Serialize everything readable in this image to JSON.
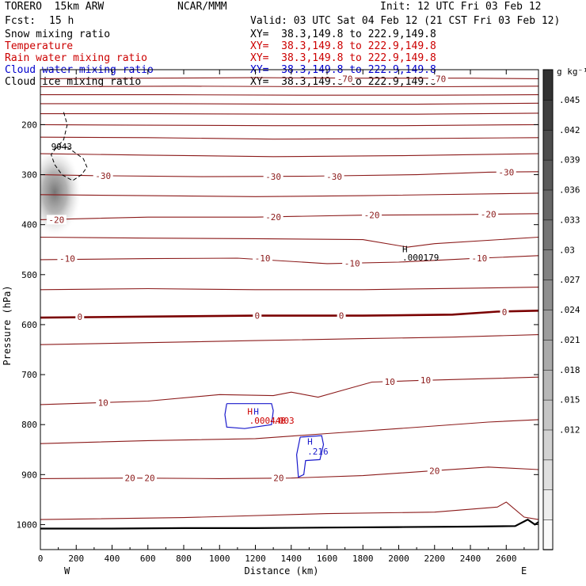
{
  "header": {
    "model": "TORERO  15km ARW",
    "org": "NCAR/MMM",
    "init": "Init: 12 UTC Fri 03 Feb 12",
    "fcst_label": "Fcst:",
    "fcst_value": "15 h",
    "valid": "Valid: 03 UTC Sat 04 Feb 12 (21 CST Fri 03 Feb 12)"
  },
  "legend": [
    {
      "name": "Snow mixing ratio",
      "xy": "XY=  38.3,149.8 to 222.9,149.8",
      "name_color": "#000000",
      "xy_color": "#000000"
    },
    {
      "name": "Temperature",
      "xy": "XY=  38.3,149.8 to 222.9,149.8",
      "name_color": "#cc0000",
      "xy_color": "#cc0000"
    },
    {
      "name": "Rain water mixing ratio",
      "xy": "XY=  38.3,149.8 to 222.9,149.8",
      "name_color": "#cc0000",
      "xy_color": "#cc0000"
    },
    {
      "name": "Cloud water mixing ratio",
      "xy": "XY=  38.3,149.8 to 222.9,149.8",
      "name_color": "#0000cc",
      "xy_color": "#0000cc"
    },
    {
      "name": "Cloud ice mixing ratio",
      "xy": "XY=  38.3,149.8 to 222.9,149.8",
      "name_color": "#000000",
      "xy_color": "#000000"
    }
  ],
  "colors": {
    "temperature": "#8b1a1a",
    "temperature_zero": "#7a0000",
    "cloud_water": "#1a1acc",
    "rain": "#cc0000",
    "snow": "#000000",
    "terrain": "#000000"
  },
  "chart_data": {
    "type": "contour",
    "xlabel": "Distance (km)",
    "ylabel": "Pressure (hPa)",
    "xlim": [
      0,
      2780
    ],
    "ylim": [
      1050,
      90
    ],
    "x_ticks": [
      0,
      200,
      400,
      600,
      800,
      1000,
      1200,
      1400,
      1600,
      1800,
      2000,
      2200,
      2400,
      2600
    ],
    "x_tick_labels": [
      "0",
      "200",
      "400",
      "600",
      "800",
      "1000",
      "1200",
      "1400",
      "1600",
      "1800",
      "2000",
      "2200",
      "2400",
      "2600"
    ],
    "y_ticks": [
      200,
      300,
      400,
      500,
      600,
      700,
      800,
      900,
      1000
    ],
    "y_tick_labels": [
      "200",
      "300",
      "400",
      "500",
      "600",
      "700",
      "800",
      "900",
      "1000"
    ],
    "x_end_labels": {
      "left": "W",
      "right": "E"
    },
    "colorbar": {
      "unit": "g kg⁻¹",
      "ticks": [
        0.012,
        0.015,
        0.018,
        0.021,
        0.024,
        0.027,
        0.03,
        0.033,
        0.036,
        0.039,
        0.042,
        0.045
      ],
      "tick_labels": [
        ".012",
        ".015",
        ".018",
        ".021",
        ".024",
        ".027",
        ".03",
        ".033",
        ".036",
        ".039",
        ".042",
        ".045"
      ],
      "vmin": 0.0,
      "vmax": 0.048
    },
    "temperature_contours": [
      {
        "value": -70,
        "label": "-70",
        "points": [
          [
            0,
            108
          ],
          [
            600,
            107
          ],
          [
            1200,
            106
          ],
          [
            1800,
            107
          ],
          [
            2400,
            107
          ],
          [
            2780,
            108
          ]
        ],
        "labels_at": [
          [
            1700,
            108
          ],
          [
            2220,
            108
          ]
        ]
      },
      {
        "value": -65,
        "points": [
          [
            0,
            124
          ],
          [
            800,
            123
          ],
          [
            1600,
            124
          ],
          [
            2200,
            124
          ],
          [
            2780,
            123
          ]
        ]
      },
      {
        "value": -60,
        "points": [
          [
            0,
            140
          ],
          [
            700,
            140
          ],
          [
            1500,
            141
          ],
          [
            2200,
            141
          ],
          [
            2780,
            140
          ]
        ]
      },
      {
        "value": -55,
        "points": [
          [
            0,
            158
          ],
          [
            700,
            158
          ],
          [
            1400,
            159
          ],
          [
            2100,
            159
          ],
          [
            2780,
            157
          ]
        ]
      },
      {
        "value": -50,
        "points": [
          [
            0,
            178
          ],
          [
            600,
            178
          ],
          [
            1400,
            179
          ],
          [
            2100,
            179
          ],
          [
            2780,
            177
          ]
        ]
      },
      {
        "value": -45,
        "points": [
          [
            0,
            200
          ],
          [
            600,
            201
          ],
          [
            1300,
            202
          ],
          [
            2000,
            202
          ],
          [
            2780,
            200
          ]
        ]
      },
      {
        "value": -40,
        "points": [
          [
            0,
            225
          ],
          [
            600,
            226
          ],
          [
            1300,
            229
          ],
          [
            2000,
            228
          ],
          [
            2780,
            226
          ]
        ]
      },
      {
        "value": -35,
        "points": [
          [
            0,
            258
          ],
          [
            600,
            261
          ],
          [
            1300,
            264
          ],
          [
            2000,
            262
          ],
          [
            2780,
            258
          ]
        ]
      },
      {
        "value": -30,
        "label": "-30",
        "points": [
          [
            0,
            300
          ],
          [
            300,
            302
          ],
          [
            900,
            304
          ],
          [
            1500,
            303
          ],
          [
            2100,
            300
          ],
          [
            2500,
            295
          ],
          [
            2780,
            294
          ]
        ],
        "labels_at": [
          [
            350,
            302
          ],
          [
            1300,
            304
          ],
          [
            1640,
            304
          ],
          [
            2600,
            295
          ]
        ]
      },
      {
        "value": -25,
        "points": [
          [
            0,
            340
          ],
          [
            600,
            342
          ],
          [
            1200,
            344
          ],
          [
            1800,
            342
          ],
          [
            2780,
            337
          ]
        ]
      },
      {
        "value": -20,
        "label": "-20",
        "points": [
          [
            0,
            390
          ],
          [
            600,
            385
          ],
          [
            1200,
            385
          ],
          [
            1800,
            381
          ],
          [
            2300,
            380
          ],
          [
            2780,
            378
          ]
        ],
        "labels_at": [
          [
            90,
            390
          ],
          [
            1300,
            385
          ],
          [
            1850,
            381
          ],
          [
            2500,
            379
          ]
        ]
      },
      {
        "value": -15,
        "points": [
          [
            0,
            425
          ],
          [
            600,
            427
          ],
          [
            1200,
            428
          ],
          [
            1800,
            430
          ],
          [
            2050,
            445
          ],
          [
            2200,
            438
          ],
          [
            2780,
            425
          ]
        ]
      },
      {
        "value": -10,
        "label": "-10",
        "points": [
          [
            0,
            470
          ],
          [
            600,
            468
          ],
          [
            1100,
            467
          ],
          [
            1600,
            478
          ],
          [
            2000,
            475
          ],
          [
            2400,
            468
          ],
          [
            2780,
            462
          ]
        ],
        "labels_at": [
          [
            150,
            468
          ],
          [
            1240,
            467
          ],
          [
            1740,
            477
          ],
          [
            2450,
            467
          ]
        ]
      },
      {
        "value": -5,
        "points": [
          [
            0,
            530
          ],
          [
            600,
            528
          ],
          [
            1200,
            530
          ],
          [
            1800,
            530
          ],
          [
            2400,
            527
          ],
          [
            2780,
            525
          ]
        ]
      },
      {
        "value": 0,
        "label": "0",
        "points": [
          [
            0,
            586
          ],
          [
            600,
            584
          ],
          [
            1200,
            582
          ],
          [
            1800,
            582
          ],
          [
            2300,
            580
          ],
          [
            2550,
            574
          ],
          [
            2780,
            572
          ]
        ],
        "labels_at": [
          [
            220,
            584
          ],
          [
            1210,
            582
          ],
          [
            1680,
            582
          ],
          [
            2590,
            575
          ]
        ]
      },
      {
        "value": 5,
        "points": [
          [
            0,
            640
          ],
          [
            600,
            636
          ],
          [
            1200,
            632
          ],
          [
            1800,
            628
          ],
          [
            2300,
            625
          ],
          [
            2780,
            620
          ]
        ]
      },
      {
        "value": 10,
        "label": "10",
        "points": [
          [
            0,
            760
          ],
          [
            600,
            753
          ],
          [
            1000,
            740
          ],
          [
            1300,
            742
          ],
          [
            1400,
            735
          ],
          [
            1550,
            745
          ],
          [
            1700,
            730
          ],
          [
            1850,
            715
          ],
          [
            2100,
            712
          ],
          [
            2500,
            708
          ],
          [
            2780,
            705
          ]
        ],
        "labels_at": [
          [
            350,
            756
          ],
          [
            1950,
            714
          ],
          [
            2150,
            711
          ]
        ]
      },
      {
        "value": 15,
        "points": [
          [
            0,
            838
          ],
          [
            600,
            832
          ],
          [
            1200,
            828
          ],
          [
            1600,
            818
          ],
          [
            2000,
            808
          ],
          [
            2500,
            795
          ],
          [
            2780,
            790
          ]
        ]
      },
      {
        "value": 20,
        "label": "20",
        "points": [
          [
            0,
            908
          ],
          [
            500,
            907
          ],
          [
            1000,
            908
          ],
          [
            1400,
            907
          ],
          [
            1800,
            902
          ],
          [
            2200,
            892
          ],
          [
            2500,
            885
          ],
          [
            2780,
            890
          ]
        ],
        "labels_at": [
          [
            500,
            907
          ],
          [
            610,
            907
          ],
          [
            1330,
            907
          ],
          [
            2200,
            892
          ]
        ]
      },
      {
        "value": 25,
        "points": [
          [
            0,
            990
          ],
          [
            800,
            986
          ],
          [
            1600,
            978
          ],
          [
            2200,
            975
          ],
          [
            2550,
            965
          ],
          [
            2600,
            955
          ],
          [
            2700,
            985
          ],
          [
            2780,
            990
          ]
        ]
      }
    ],
    "cloud_water_labels": [
      {
        "label": "H",
        "x": 1190,
        "p": 780,
        "color": "#1a1acc"
      },
      {
        "label": "H",
        "x": 1490,
        "p": 840,
        "color": "#1a1acc"
      },
      {
        "label": ".216",
        "x": 1490,
        "p": 860,
        "color": "#1a1acc"
      }
    ],
    "rain_labels": [
      {
        "label": "H",
        "x": 1155,
        "p": 780,
        "color": "#cc0000"
      },
      {
        "label": ".000448",
        "x": 1165,
        "p": 798,
        "color": "#cc0000"
      },
      {
        "label": ".003",
        "x": 1300,
        "p": 798,
        "color": "#cc0000"
      }
    ],
    "snow_labels": [
      {
        "label": "H",
        "x": 2020,
        "p": 455,
        "color": "#000000"
      },
      {
        "label": ".000179",
        "x": 2020,
        "p": 472,
        "color": "#000000"
      },
      {
        "label": "9043",
        "x": 60,
        "p": 250,
        "color": "#000000"
      }
    ],
    "ice_shading": {
      "x_center": 80,
      "p_center": 335,
      "x_half_width": 150,
      "p_half_height": 90,
      "peak": 0.045
    }
  }
}
